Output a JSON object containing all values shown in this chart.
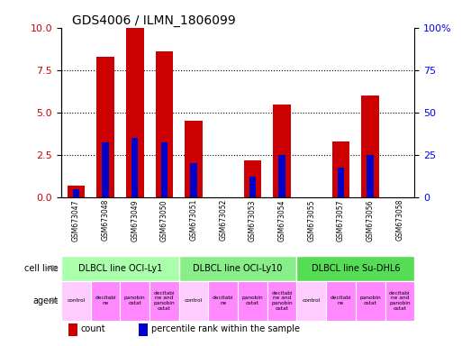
{
  "title": "GDS4006 / ILMN_1806099",
  "samples": [
    "GSM673047",
    "GSM673048",
    "GSM673049",
    "GSM673050",
    "GSM673051",
    "GSM673052",
    "GSM673053",
    "GSM673054",
    "GSM673055",
    "GSM673057",
    "GSM673056",
    "GSM673058"
  ],
  "counts": [
    0.7,
    8.3,
    10.0,
    8.6,
    4.5,
    0.0,
    2.2,
    5.5,
    0.0,
    3.3,
    6.0,
    0.0
  ],
  "percentiles": [
    5.0,
    32.5,
    35.0,
    32.5,
    20.0,
    0.0,
    12.5,
    25.0,
    0.0,
    17.5,
    25.0,
    0.0
  ],
  "ylim_left": [
    0,
    10
  ],
  "ylim_right": [
    0,
    100
  ],
  "yticks_left": [
    0,
    2.5,
    5.0,
    7.5,
    10
  ],
  "yticks_right": [
    0,
    25,
    50,
    75,
    100
  ],
  "bar_color": "#cc0000",
  "percentile_color": "#0000cc",
  "bar_width": 0.6,
  "cell_lines": [
    {
      "label": "DLBCL line OCI-Ly1",
      "start": 0,
      "end": 4,
      "color": "#aaffaa"
    },
    {
      "label": "DLBCL line OCI-Ly10",
      "start": 4,
      "end": 8,
      "color": "#88ee88"
    },
    {
      "label": "DLBCL line Su-DHL6",
      "start": 8,
      "end": 12,
      "color": "#55dd55"
    }
  ],
  "agents": [
    "control",
    "decitabi-\nne",
    "panobin-\nostat",
    "decitabi-\nne and\npanobin-\nostat",
    "control",
    "decitabi-\nne",
    "panobin-\nostat",
    "decitabi-\nne and\npanobin-\nostat",
    "control",
    "decitabi-\nne",
    "panobin-\nostat",
    "decitabi-\nne and\npanobin-\nostat"
  ],
  "agent_control_color": "#ffccff",
  "agent_other_color": "#ff88ff",
  "legend_count_color": "#cc0000",
  "legend_percentile_color": "#0000cc",
  "background_color": "#ffffff",
  "label_area_color": "#cccccc",
  "grid_dotted_vals": [
    2.5,
    5.0,
    7.5
  ],
  "right_tick_labels": [
    "0",
    "25",
    "50",
    "75",
    "100%"
  ]
}
